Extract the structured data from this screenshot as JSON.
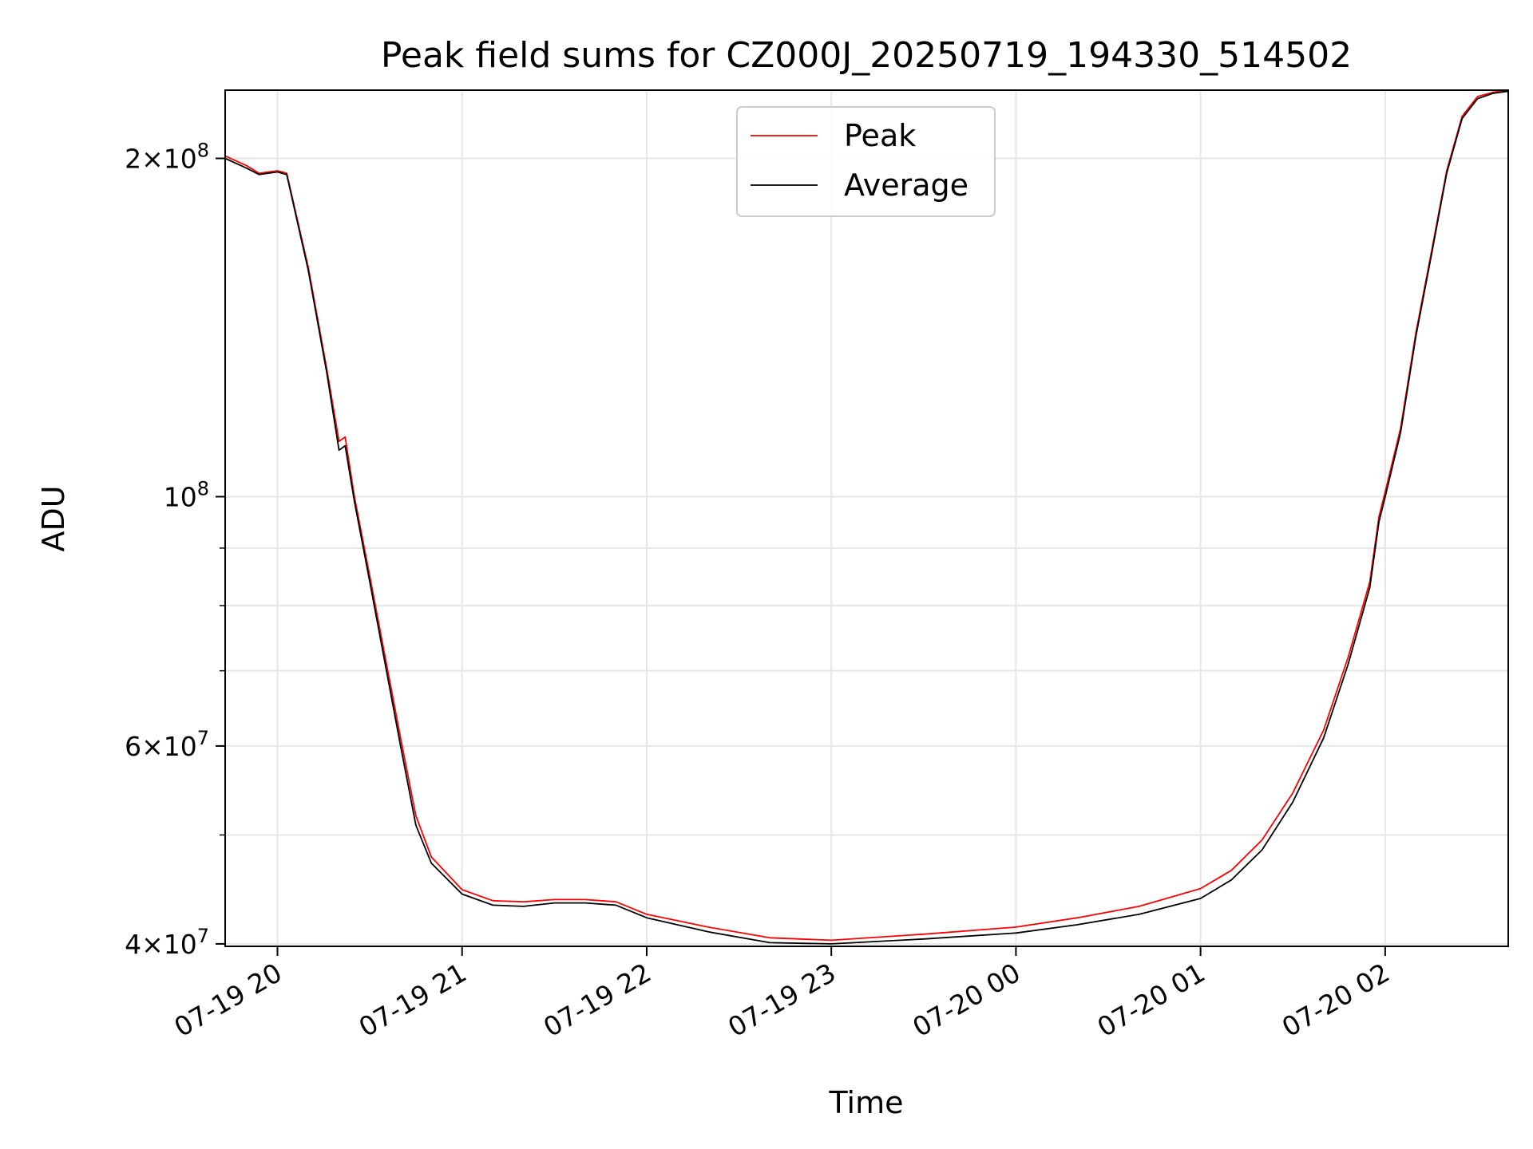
{
  "chart_data": {
    "type": "line",
    "title": "Peak field sums for CZ000J_20250719_194330_514502",
    "xlabel": "Time",
    "ylabel": "ADU",
    "yscale": "log",
    "ylim": [
      39800000,
      230000000
    ],
    "xlim": [
      "2025-07-19 19:43",
      "2025-07-20 02:40"
    ],
    "grid": true,
    "legend": {
      "placement": "top-center",
      "entries": [
        "Peak",
        "Average"
      ]
    },
    "x_ticks": [
      {
        "label": "07-19 20",
        "time": "2025-07-19 20:00"
      },
      {
        "label": "07-19 21",
        "time": "2025-07-19 21:00"
      },
      {
        "label": "07-19 22",
        "time": "2025-07-19 22:00"
      },
      {
        "label": "07-19 23",
        "time": "2025-07-19 23:00"
      },
      {
        "label": "07-20 00",
        "time": "2025-07-20 00:00"
      },
      {
        "label": "07-20 01",
        "time": "2025-07-20 01:00"
      },
      {
        "label": "07-20 02",
        "time": "2025-07-20 02:00"
      }
    ],
    "y_ticks": [
      {
        "mantissa": "4",
        "exp": "7",
        "value": 40000000
      },
      {
        "mantissa": "6",
        "exp": "7",
        "value": 60000000
      },
      {
        "mantissa": "",
        "exp": "8",
        "value": 100000000
      },
      {
        "mantissa": "2",
        "exp": "8",
        "value": 200000000
      }
    ],
    "y_minor_ticks": [
      50000000,
      70000000,
      80000000,
      90000000
    ],
    "series": [
      {
        "name": "Peak",
        "color": "#ff0000",
        "x": [
          "2025-07-19 19:43",
          "2025-07-19 19:50",
          "2025-07-19 19:54",
          "2025-07-19 20:00",
          "2025-07-19 20:03",
          "2025-07-19 20:10",
          "2025-07-19 20:16",
          "2025-07-19 20:20",
          "2025-07-19 20:22",
          "2025-07-19 20:25",
          "2025-07-19 20:30",
          "2025-07-19 20:35",
          "2025-07-19 20:40",
          "2025-07-19 20:45",
          "2025-07-19 20:50",
          "2025-07-19 21:00",
          "2025-07-19 21:10",
          "2025-07-19 21:20",
          "2025-07-19 21:30",
          "2025-07-19 21:40",
          "2025-07-19 21:50",
          "2025-07-19 22:00",
          "2025-07-19 22:20",
          "2025-07-19 22:40",
          "2025-07-19 23:00",
          "2025-07-19 23:30",
          "2025-07-20 00:00",
          "2025-07-20 00:20",
          "2025-07-20 00:40",
          "2025-07-20 01:00",
          "2025-07-20 01:10",
          "2025-07-20 01:20",
          "2025-07-20 01:30",
          "2025-07-20 01:40",
          "2025-07-20 01:48",
          "2025-07-20 01:55",
          "2025-07-20 01:58",
          "2025-07-20 02:00",
          "2025-07-20 02:05",
          "2025-07-20 02:10",
          "2025-07-20 02:15",
          "2025-07-20 02:20",
          "2025-07-20 02:25",
          "2025-07-20 02:30",
          "2025-07-20 02:35",
          "2025-07-20 02:40"
        ],
        "y": [
          201000000,
          197000000,
          194000000,
          195000000,
          194000000,
          160000000,
          130000000,
          112000000,
          113000000,
          100000000,
          85000000,
          72000000,
          61000000,
          52000000,
          47800000,
          44700000,
          43700000,
          43600000,
          43800000,
          43800000,
          43600000,
          42500000,
          41400000,
          40500000,
          40300000,
          40800000,
          41400000,
          42200000,
          43200000,
          44800000,
          46500000,
          49500000,
          54500000,
          62000000,
          72000000,
          84000000,
          96000000,
          101000000,
          115000000,
          140000000,
          165000000,
          195000000,
          218000000,
          227000000,
          229000000,
          230000000
        ]
      },
      {
        "name": "Average",
        "color": "#000000",
        "x": [
          "2025-07-19 19:43",
          "2025-07-19 19:50",
          "2025-07-19 19:54",
          "2025-07-19 20:00",
          "2025-07-19 20:03",
          "2025-07-19 20:10",
          "2025-07-19 20:16",
          "2025-07-19 20:20",
          "2025-07-19 20:22",
          "2025-07-19 20:25",
          "2025-07-19 20:30",
          "2025-07-19 20:35",
          "2025-07-19 20:40",
          "2025-07-19 20:45",
          "2025-07-19 20:50",
          "2025-07-19 21:00",
          "2025-07-19 21:10",
          "2025-07-19 21:20",
          "2025-07-19 21:30",
          "2025-07-19 21:40",
          "2025-07-19 21:50",
          "2025-07-19 22:00",
          "2025-07-19 22:20",
          "2025-07-19 22:40",
          "2025-07-19 23:00",
          "2025-07-19 23:30",
          "2025-07-20 00:00",
          "2025-07-20 00:20",
          "2025-07-20 00:40",
          "2025-07-20 01:00",
          "2025-07-20 01:10",
          "2025-07-20 01:20",
          "2025-07-20 01:30",
          "2025-07-20 01:40",
          "2025-07-20 01:48",
          "2025-07-20 01:55",
          "2025-07-20 01:58",
          "2025-07-20 02:00",
          "2025-07-20 02:05",
          "2025-07-20 02:10",
          "2025-07-20 02:15",
          "2025-07-20 02:20",
          "2025-07-20 02:25",
          "2025-07-20 02:30",
          "2025-07-20 02:35",
          "2025-07-20 02:40"
        ],
        "y": [
          200000000,
          196000000,
          193500000,
          194500000,
          193500000,
          159000000,
          129000000,
          110000000,
          111000000,
          99000000,
          84000000,
          71000000,
          60000000,
          51000000,
          47200000,
          44300000,
          43300000,
          43200000,
          43500000,
          43500000,
          43300000,
          42200000,
          41000000,
          40100000,
          40000000,
          40400000,
          40900000,
          41600000,
          42500000,
          43900000,
          45600000,
          48500000,
          53500000,
          61000000,
          71000000,
          83000000,
          95000000,
          100000000,
          114000000,
          139000000,
          164000000,
          194000000,
          217000000,
          226000000,
          228500000,
          229500000
        ]
      }
    ]
  }
}
